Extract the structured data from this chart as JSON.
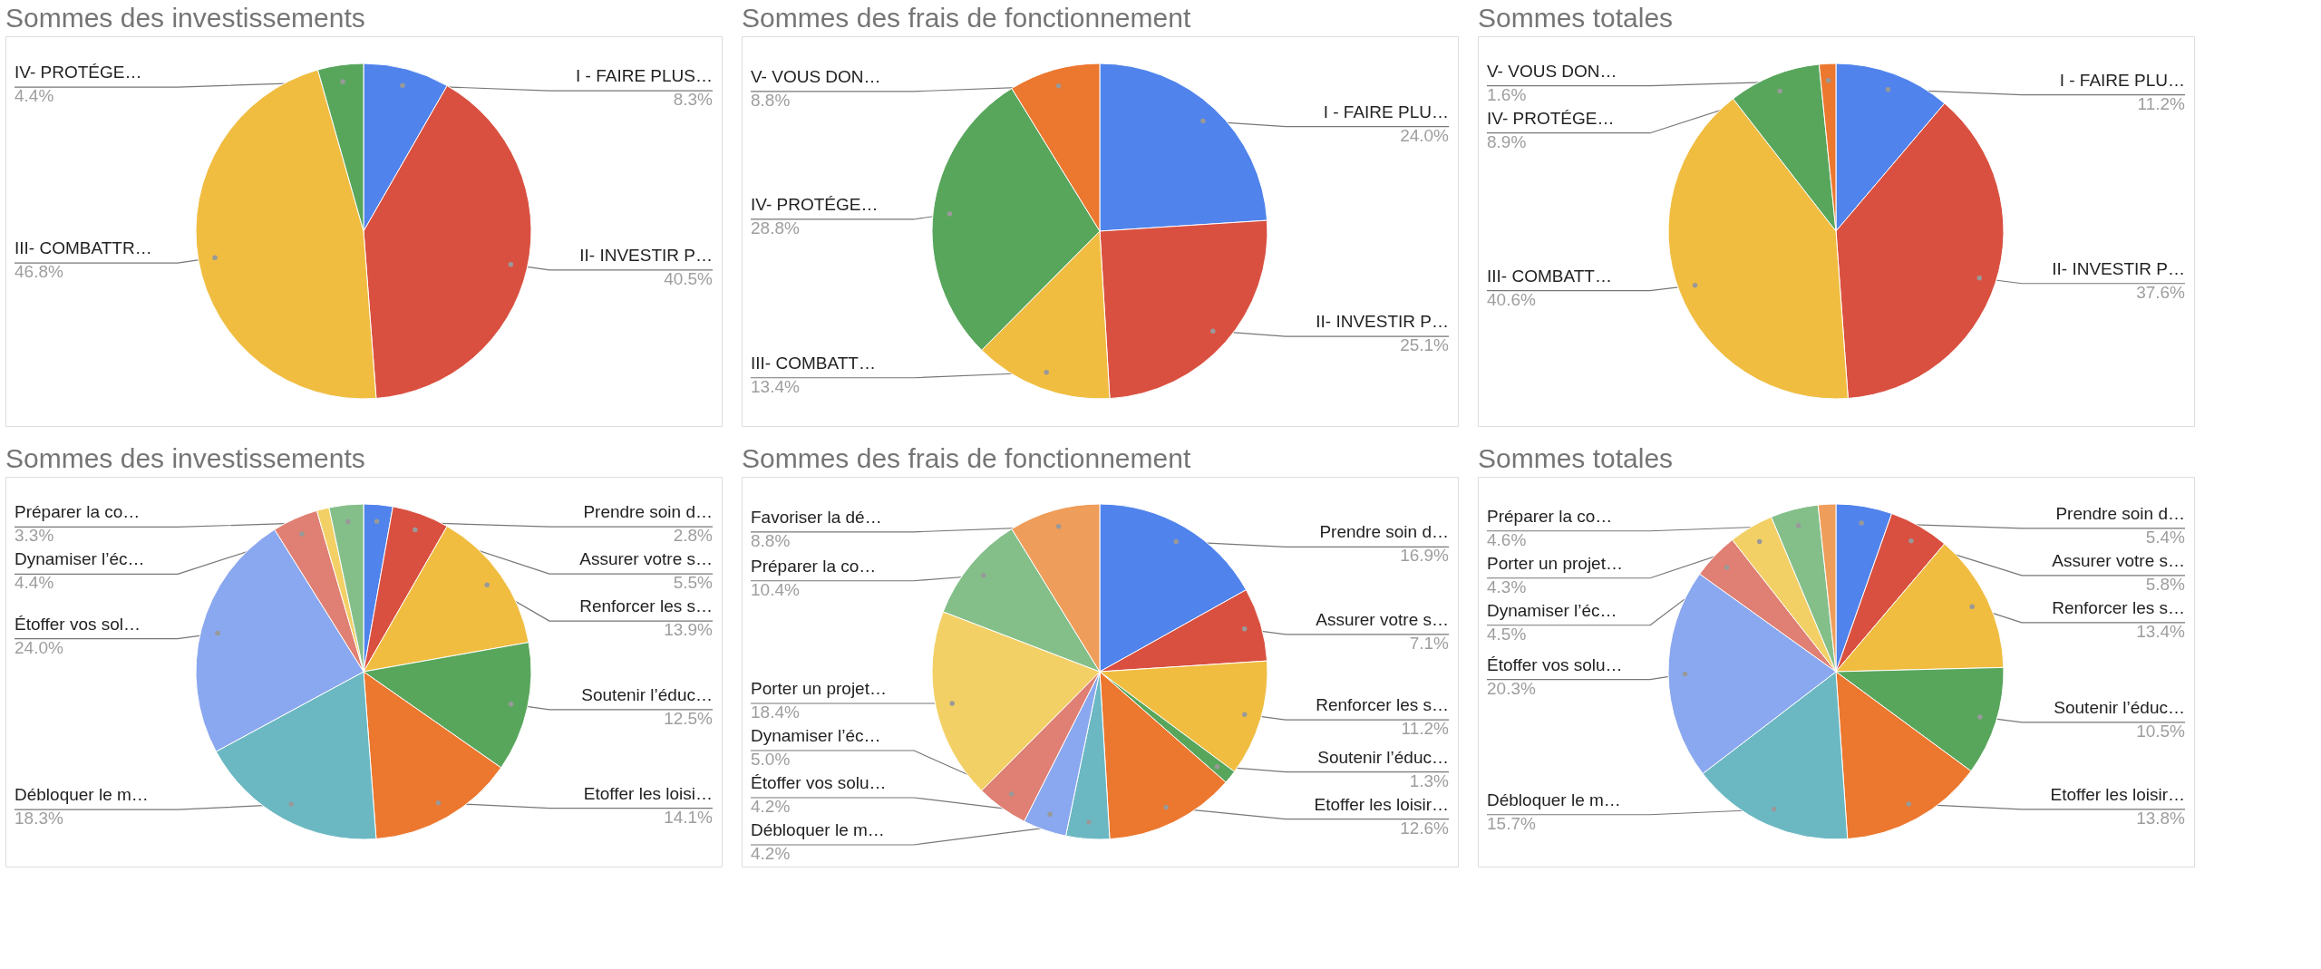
{
  "chart_data": [
    {
      "type": "pie",
      "title": "Sommes des investissements",
      "categories": [
        "I - FAIRE PLUS…",
        "II- INVESTIR P…",
        "III- COMBATTR…",
        "IV- PROTÉGE…"
      ],
      "values": [
        8.3,
        40.5,
        46.8,
        4.4
      ],
      "value_labels": [
        "8.3%",
        "40.5%",
        "46.8%",
        "4.4%"
      ],
      "colors": [
        "#5083ec",
        "#d95040",
        "#f0bd41",
        "#58a65c"
      ]
    },
    {
      "type": "pie",
      "title": "Sommes des frais de fonctionnement",
      "categories": [
        "I - FAIRE PLU…",
        "II- INVESTIR P…",
        "III- COMBATT…",
        "IV- PROTÉGE…",
        "V- VOUS DON…"
      ],
      "values": [
        24.0,
        25.1,
        13.4,
        28.8,
        8.8
      ],
      "value_labels": [
        "24.0%",
        "25.1%",
        "13.4%",
        "28.8%",
        "8.8%"
      ],
      "colors": [
        "#5083ec",
        "#d95040",
        "#f0bd41",
        "#58a65c",
        "#ec772e"
      ]
    },
    {
      "type": "pie",
      "title": "Sommes totales",
      "categories": [
        "I - FAIRE PLU…",
        "II- INVESTIR P…",
        "III- COMBATT…",
        "IV- PROTÉGE…",
        "V- VOUS DON…"
      ],
      "values": [
        11.2,
        37.6,
        40.6,
        8.9,
        1.6
      ],
      "value_labels": [
        "11.2%",
        "37.6%",
        "40.6%",
        "8.9%",
        "1.6%"
      ],
      "colors": [
        "#5083ec",
        "#d95040",
        "#f0bd41",
        "#58a65c",
        "#ec772e"
      ]
    },
    {
      "type": "pie",
      "title": "Sommes des investissements",
      "categories": [
        "Prendre soin d…",
        "Assurer votre s…",
        "Renforcer les s…",
        "Soutenir l’éduc…",
        "Etoffer les loisi…",
        "Débloquer le m…",
        "Étoffer vos sol…",
        "Dynamiser l’éc…",
        null,
        "Préparer la co…"
      ],
      "values": [
        2.8,
        5.5,
        13.9,
        12.5,
        14.1,
        18.3,
        24.0,
        4.4,
        1.2,
        3.3
      ],
      "value_labels": [
        "2.8%",
        "5.5%",
        "13.9%",
        "12.5%",
        "14.1%",
        "18.3%",
        "24.0%",
        "4.4%",
        null,
        "3.3%"
      ],
      "colors": [
        "#5083ec",
        "#d95040",
        "#f0bd41",
        "#58a65c",
        "#ec772e",
        "#6bb8c3",
        "#8aa8ef",
        "#e07f73",
        "#f3d066",
        "#84bf8a"
      ]
    },
    {
      "type": "pie",
      "title": "Sommes des frais de fonctionnement",
      "categories": [
        "Prendre soin d…",
        "Assurer votre s…",
        "Renforcer les s…",
        "Soutenir l’éduc…",
        "Etoffer les loisir…",
        "Débloquer le m…",
        "Étoffer vos solu…",
        "Dynamiser l’éc…",
        "Porter un projet…",
        "Préparer la co…",
        "Favoriser la dé…"
      ],
      "values": [
        16.9,
        7.1,
        11.2,
        1.3,
        12.6,
        4.2,
        4.2,
        5.0,
        18.4,
        10.4,
        8.8
      ],
      "value_labels": [
        "16.9%",
        "7.1%",
        "11.2%",
        "1.3%",
        "12.6%",
        "4.2%",
        "4.2%",
        "5.0%",
        "18.4%",
        "10.4%",
        "8.8%"
      ],
      "colors": [
        "#5083ec",
        "#d95040",
        "#f0bd41",
        "#58a65c",
        "#ec772e",
        "#6bb8c3",
        "#8aa8ef",
        "#e07f73",
        "#f3d066",
        "#84bf8a",
        "#ef9d5a"
      ]
    },
    {
      "type": "pie",
      "title": "Sommes totales",
      "categories": [
        "Prendre soin d…",
        "Assurer votre s…",
        "Renforcer les s…",
        "Soutenir l’éduc…",
        "Etoffer les loisir…",
        "Débloquer le m…",
        "Étoffer vos solu…",
        "Dynamiser l’éc…",
        "Porter un projet…",
        "Préparer la co…",
        null
      ],
      "values": [
        5.4,
        5.8,
        13.4,
        10.5,
        13.8,
        15.7,
        20.3,
        4.5,
        4.3,
        4.6,
        1.7
      ],
      "value_labels": [
        "5.4%",
        "5.8%",
        "13.4%",
        "10.5%",
        "13.8%",
        "15.7%",
        "20.3%",
        "4.5%",
        "4.3%",
        "4.6%",
        null
      ],
      "colors": [
        "#5083ec",
        "#d95040",
        "#f0bd41",
        "#58a65c",
        "#ec772e",
        "#6bb8c3",
        "#8aa8ef",
        "#e07f73",
        "#f3d066",
        "#84bf8a",
        "#ef9d5a"
      ]
    }
  ]
}
